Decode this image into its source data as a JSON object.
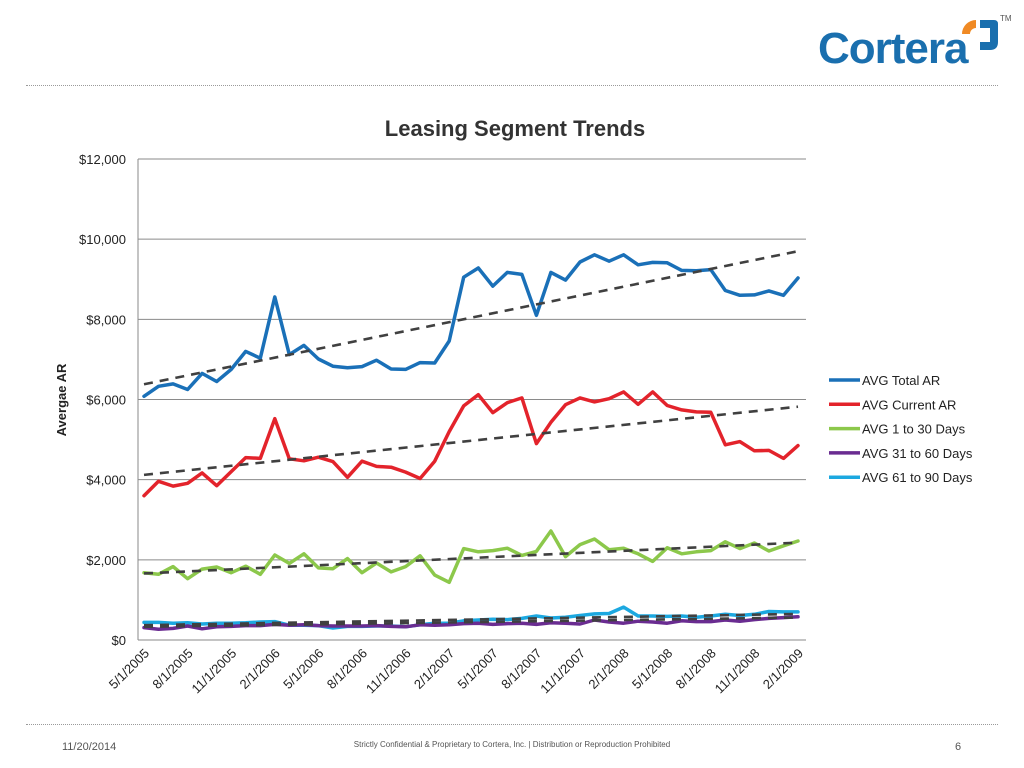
{
  "logo": {
    "text": "Cortera",
    "tm": "TM"
  },
  "footer": {
    "date": "11/20/2014",
    "notice": "Strictly Confidential & Proprietary to Cortera, Inc. |  Distribution or Reproduction Prohibited",
    "page": "6"
  },
  "chart_data": {
    "type": "line",
    "title": "Leasing Segment Trends",
    "ylabel": "Avergae AR",
    "xlabel": "",
    "ylim": [
      0,
      12000
    ],
    "yticks": [
      0,
      2000,
      4000,
      6000,
      8000,
      10000,
      12000
    ],
    "ytick_labels": [
      "$0",
      "$2,000",
      "$4,000",
      "$6,000",
      "$8,000",
      "$10,000",
      "$12,000"
    ],
    "grid": true,
    "legend_position": "right",
    "x_tick_labels": [
      "5/1/2005",
      "8/1/2005",
      "11/1/2005",
      "2/1/2006",
      "5/1/2006",
      "8/1/2006",
      "11/1/2006",
      "2/1/2007",
      "5/1/2007",
      "8/1/2007",
      "11/1/2007",
      "2/1/2008",
      "5/1/2008",
      "8/1/2008",
      "11/1/2008",
      "2/1/2009"
    ],
    "x_tick_every": 3,
    "series": [
      {
        "name": "AVG Total AR",
        "color": "#1a70b8",
        "values": [
          6080,
          6330,
          6390,
          6250,
          6650,
          6450,
          6750,
          7200,
          7030,
          8560,
          7120,
          7350,
          7010,
          6830,
          6790,
          6820,
          6980,
          6760,
          6750,
          6920,
          6910,
          7460,
          9050,
          9280,
          8830,
          9170,
          9120,
          8100,
          9170,
          8980,
          9430,
          9610,
          9450,
          9610,
          9360,
          9420,
          9410,
          9220,
          9210,
          9240,
          8720,
          8600,
          8610,
          8710,
          8600,
          9030
        ],
        "trend": [
          6380,
          9700
        ]
      },
      {
        "name": "AVG Current AR",
        "color": "#e3232b",
        "values": [
          3600,
          3960,
          3840,
          3910,
          4170,
          3850,
          4200,
          4550,
          4530,
          5520,
          4520,
          4470,
          4560,
          4450,
          4060,
          4460,
          4330,
          4310,
          4190,
          4030,
          4460,
          5200,
          5840,
          6120,
          5670,
          5920,
          6040,
          4900,
          5430,
          5870,
          6040,
          5940,
          6020,
          6190,
          5880,
          6190,
          5850,
          5740,
          5690,
          5680,
          4870,
          4950,
          4720,
          4730,
          4530,
          4850
        ],
        "trend": [
          4120,
          5820
        ]
      },
      {
        "name": "AVG 1 to 30 Days",
        "color": "#8cc84b",
        "values": [
          1680,
          1640,
          1830,
          1530,
          1770,
          1820,
          1680,
          1840,
          1640,
          2120,
          1910,
          2150,
          1800,
          1780,
          2030,
          1680,
          1920,
          1700,
          1830,
          2100,
          1620,
          1440,
          2280,
          2200,
          2230,
          2290,
          2110,
          2210,
          2720,
          2080,
          2380,
          2520,
          2250,
          2290,
          2150,
          1960,
          2300,
          2150,
          2200,
          2230,
          2450,
          2280,
          2420,
          2220,
          2350,
          2470
        ],
        "trend": [
          1660,
          2430
        ]
      },
      {
        "name": "AVG 31 to 60 Days",
        "color": "#6a2c91",
        "values": [
          310,
          270,
          290,
          350,
          280,
          330,
          340,
          360,
          360,
          390,
          370,
          380,
          360,
          350,
          350,
          350,
          360,
          340,
          330,
          380,
          370,
          380,
          410,
          420,
          390,
          410,
          420,
          390,
          430,
          420,
          400,
          500,
          450,
          420,
          470,
          450,
          420,
          480,
          460,
          460,
          500,
          470,
          510,
          540,
          560,
          580
        ],
        "trend": [
          330,
          560
        ]
      },
      {
        "name": "AVG 61 to 90 Days",
        "color": "#1ca8e0",
        "values": [
          440,
          440,
          420,
          430,
          400,
          420,
          420,
          430,
          450,
          460,
          370,
          370,
          360,
          300,
          340,
          340,
          350,
          350,
          330,
          380,
          420,
          420,
          480,
          500,
          520,
          510,
          540,
          600,
          550,
          570,
          610,
          650,
          660,
          820,
          600,
          600,
          590,
          600,
          570,
          600,
          640,
          610,
          640,
          710,
          700,
          700
        ],
        "trend": [
          370,
          650
        ]
      }
    ]
  }
}
